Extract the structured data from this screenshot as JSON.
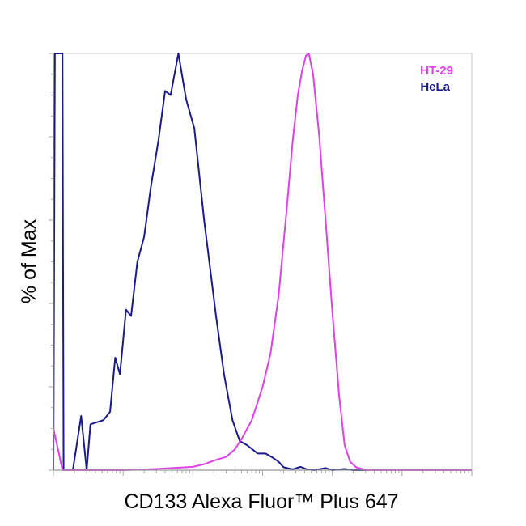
{
  "chart_data": {
    "type": "line",
    "title": "",
    "xlabel": "CD133 Alexa Fluor™ Plus 647",
    "ylabel": "% of Max",
    "x_scale": "log",
    "xlim": [
      1,
      1000000
    ],
    "ylim": [
      0,
      100
    ],
    "grid": false,
    "legend_position": "top-right",
    "series": [
      {
        "name": "HT-29",
        "color": "#e040e8",
        "points": [
          [
            1.0,
            10
          ],
          [
            1.2,
            4
          ],
          [
            1.35,
            0
          ],
          [
            3,
            0
          ],
          [
            10,
            0
          ],
          [
            30,
            0.3
          ],
          [
            100,
            0.8
          ],
          [
            150,
            1.5
          ],
          [
            200,
            2.3
          ],
          [
            300,
            3.2
          ],
          [
            400,
            5
          ],
          [
            500,
            7.5
          ],
          [
            700,
            12
          ],
          [
            1000,
            20
          ],
          [
            1300,
            28
          ],
          [
            1700,
            42
          ],
          [
            2200,
            62
          ],
          [
            2700,
            79
          ],
          [
            3200,
            90
          ],
          [
            3700,
            96
          ],
          [
            4200,
            99.5
          ],
          [
            4600,
            100
          ],
          [
            5300,
            95
          ],
          [
            6500,
            80
          ],
          [
            8000,
            60
          ],
          [
            10000,
            38
          ],
          [
            12500,
            18
          ],
          [
            15000,
            6
          ],
          [
            18000,
            2
          ],
          [
            22000,
            0.7
          ],
          [
            30000,
            0
          ],
          [
            100000,
            0
          ],
          [
            1000000,
            0
          ]
        ]
      },
      {
        "name": "HeLa",
        "color": "#1a1a8c",
        "points": [
          [
            1.0,
            0
          ],
          [
            1.05,
            100
          ],
          [
            1.35,
            100
          ],
          [
            1.4,
            0
          ],
          [
            1.9,
            0
          ],
          [
            2.5,
            13
          ],
          [
            3.0,
            0
          ],
          [
            3.4,
            11
          ],
          [
            4.2,
            11.5
          ],
          [
            5.2,
            12
          ],
          [
            6.5,
            14
          ],
          [
            7.7,
            27
          ],
          [
            9,
            23
          ],
          [
            11,
            38.5
          ],
          [
            13,
            37
          ],
          [
            16,
            50
          ],
          [
            20,
            56
          ],
          [
            25,
            68
          ],
          [
            32,
            79
          ],
          [
            40,
            91
          ],
          [
            48,
            90
          ],
          [
            62,
            100
          ],
          [
            80,
            89
          ],
          [
            105,
            82
          ],
          [
            145,
            60
          ],
          [
            215,
            37
          ],
          [
            280,
            23
          ],
          [
            370,
            12
          ],
          [
            470,
            7
          ],
          [
            600,
            6
          ],
          [
            850,
            4
          ],
          [
            1100,
            4
          ],
          [
            1400,
            3
          ],
          [
            1700,
            2
          ],
          [
            2000,
            0.7
          ],
          [
            2700,
            0.2
          ],
          [
            3500,
            0.8
          ],
          [
            4300,
            0.2
          ],
          [
            5500,
            0
          ],
          [
            8000,
            0.5
          ],
          [
            10000,
            0
          ],
          [
            15000,
            0.3
          ],
          [
            20000,
            0
          ],
          [
            1000000,
            0
          ]
        ]
      }
    ]
  }
}
